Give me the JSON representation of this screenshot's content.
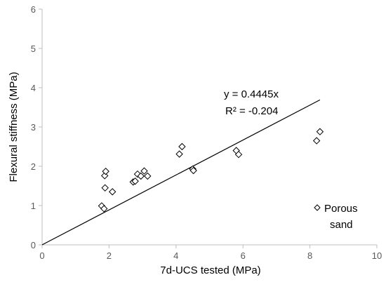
{
  "chart_data": {
    "type": "scatter",
    "title": "",
    "xlabel": "7d-UCS tested (MPa)",
    "ylabel": "Flexural stiffness (MPa)",
    "xlim": [
      0,
      10
    ],
    "ylim": [
      0,
      6
    ],
    "x_ticks": [
      "0",
      "2",
      "4",
      "6",
      "8",
      "10"
    ],
    "y_ticks": [
      "0",
      "1",
      "2",
      "3",
      "4",
      "5",
      "6"
    ],
    "grid": false,
    "legend_position": "bottom-right",
    "series": [
      {
        "name": "Porous sand",
        "marker": "diamond-open",
        "color": "#000000",
        "points": [
          {
            "x": 1.78,
            "y": 0.99
          },
          {
            "x": 1.85,
            "y": 0.92
          },
          {
            "x": 1.88,
            "y": 1.45
          },
          {
            "x": 1.87,
            "y": 1.76
          },
          {
            "x": 1.9,
            "y": 1.87
          },
          {
            "x": 2.1,
            "y": 1.35
          },
          {
            "x": 2.72,
            "y": 1.6
          },
          {
            "x": 2.78,
            "y": 1.62
          },
          {
            "x": 2.85,
            "y": 1.8
          },
          {
            "x": 2.95,
            "y": 1.75
          },
          {
            "x": 3.05,
            "y": 1.88
          },
          {
            "x": 3.15,
            "y": 1.75
          },
          {
            "x": 4.1,
            "y": 2.31
          },
          {
            "x": 4.18,
            "y": 2.5
          },
          {
            "x": 4.5,
            "y": 1.93
          },
          {
            "x": 4.52,
            "y": 1.89
          },
          {
            "x": 5.8,
            "y": 2.4
          },
          {
            "x": 5.87,
            "y": 2.3
          },
          {
            "x": 8.2,
            "y": 2.65
          },
          {
            "x": 8.3,
            "y": 2.88
          }
        ]
      }
    ],
    "trendline": {
      "slope": 0.4445,
      "x_range": [
        0,
        8.3
      ],
      "equation": "y = 0.4445x",
      "r_squared": "R² = -0.204"
    }
  }
}
